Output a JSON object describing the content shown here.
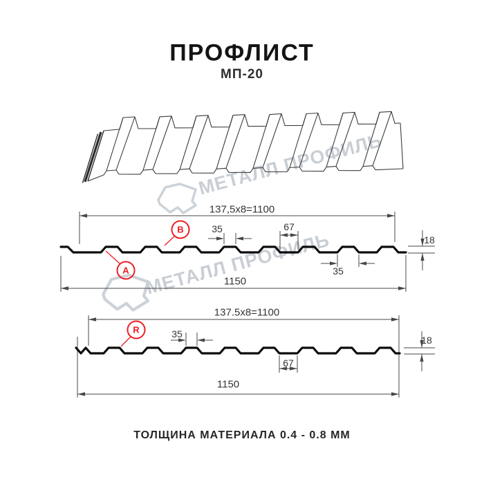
{
  "header": {
    "title": "ПРОФЛИСТ",
    "subtitle": "МП-20"
  },
  "watermark": {
    "text": "МЕТАЛЛ ПРОФИЛЬ",
    "color": "#c9ced5",
    "logo_icon": "metall-profil-logo"
  },
  "colors": {
    "accent_red": "#ed1c24",
    "drawing_line": "#474747",
    "profile_line": "#0c0c0c"
  },
  "section1": {
    "dim_cover_width": "137,5x8=1100",
    "dim_rib_top": "35",
    "dim_valley": "67",
    "dim_height": "18",
    "dim_rib_bottom": "35",
    "dim_overall_width": "1150",
    "label_a": "A",
    "label_b": "B"
  },
  "section2": {
    "dim_cover_width": "137.5x8=1100",
    "dim_rib_top": "35",
    "dim_valley": "67",
    "dim_height": "18",
    "dim_overall_width": "1150",
    "label_r": "R"
  },
  "footer": {
    "text": "ТОЛЩИНА МАТЕРИАЛА 0.4 - 0.8 ММ"
  }
}
